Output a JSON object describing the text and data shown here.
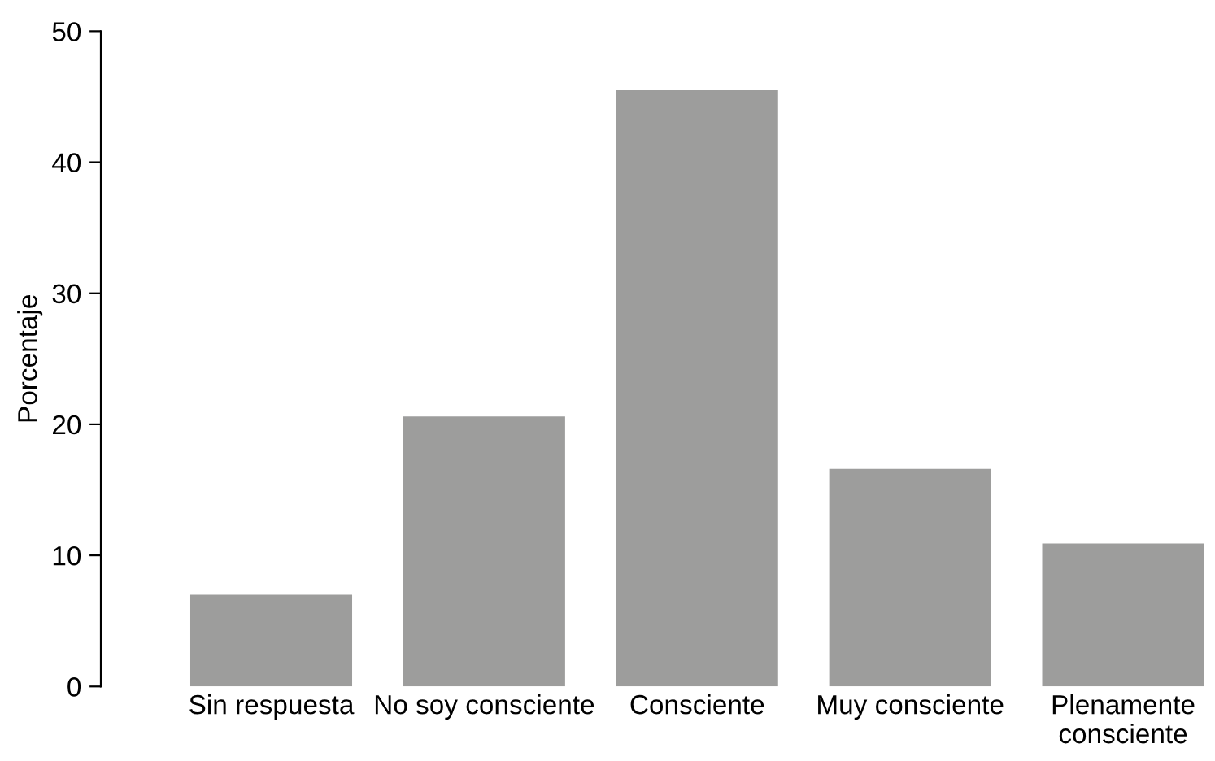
{
  "chart_data": {
    "type": "bar",
    "ylabel": "Porcentaje",
    "categories": [
      "Sin respuesta",
      "No soy consciente",
      "Consciente",
      "Muy consciente",
      "Plenamente\nconsciente"
    ],
    "values": [
      7.0,
      20.6,
      45.5,
      16.6,
      10.9
    ],
    "color": "#9d9d9c",
    "ylim": [
      0,
      50
    ],
    "yticks": [
      0,
      10,
      20,
      30,
      40,
      50
    ],
    "grid": false
  }
}
